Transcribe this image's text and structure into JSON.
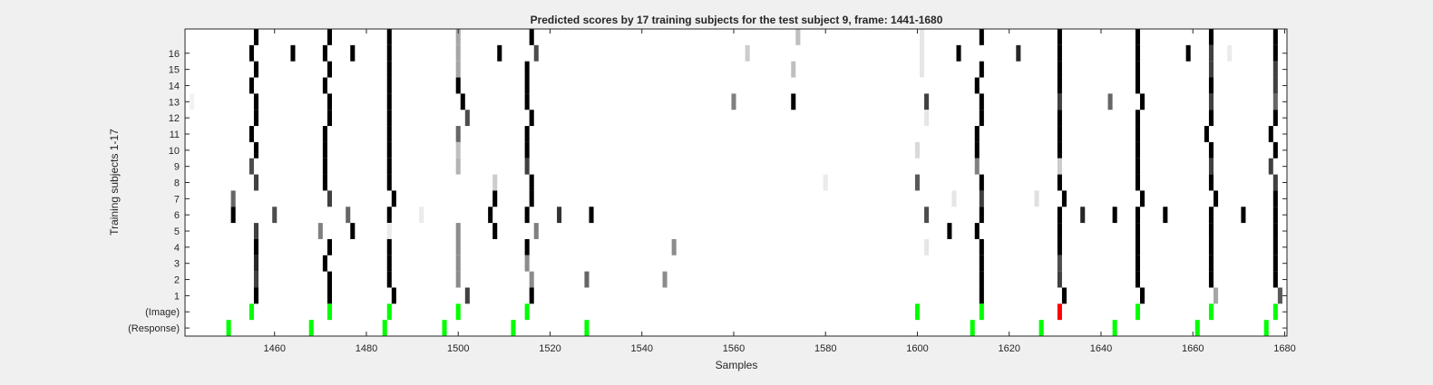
{
  "chart_data": {
    "type": "heatmap",
    "title": "Predicted scores by 17 training subjects for the test subject 9, frame: 1441-1680",
    "xlabel": "Samples",
    "ylabel": "Training subjects 1-17",
    "xlim": [
      1441,
      1680
    ],
    "x_ticks": [
      "1460",
      "1480",
      "1500",
      "1520",
      "1540",
      "1560",
      "1580",
      "1600",
      "1620",
      "1640",
      "1660",
      "1680"
    ],
    "y_tick_labels": [
      "16",
      "15",
      "14",
      "13",
      "12",
      "11",
      "10",
      "9",
      "8",
      "7",
      "6",
      "5",
      "4",
      "3",
      "2",
      "1",
      "(Image)",
      "(Response)"
    ],
    "rows": [
      "17",
      "16",
      "15",
      "14",
      "13",
      "12",
      "11",
      "10",
      "9",
      "8",
      "7",
      "6",
      "5",
      "4",
      "3",
      "2",
      "1",
      "(Image)",
      "(Response)"
    ],
    "value_range": [
      0,
      1
    ],
    "colors": {
      "score_max": "#000000",
      "score_min": "#ffffff",
      "marker": "#00ff00",
      "mismatch": "#ff0000",
      "background": "#f0f0f0"
    },
    "cells": [
      {
        "row": "17",
        "x": 1456,
        "v": 1.0
      },
      {
        "row": "17",
        "x": 1472,
        "v": 1.0
      },
      {
        "row": "17",
        "x": 1485,
        "v": 1.0
      },
      {
        "row": "17",
        "x": 1500,
        "v": 0.35
      },
      {
        "row": "17",
        "x": 1516,
        "v": 1.0
      },
      {
        "row": "17",
        "x": 1574,
        "v": 0.25
      },
      {
        "row": "17",
        "x": 1601,
        "v": 0.1
      },
      {
        "row": "17",
        "x": 1614,
        "v": 1.0
      },
      {
        "row": "17",
        "x": 1631,
        "v": 1.0
      },
      {
        "row": "17",
        "x": 1648,
        "v": 1.0
      },
      {
        "row": "17",
        "x": 1664,
        "v": 1.0
      },
      {
        "row": "17",
        "x": 1678,
        "v": 1.0
      },
      {
        "row": "16",
        "x": 1455,
        "v": 1.0
      },
      {
        "row": "16",
        "x": 1464,
        "v": 1.0
      },
      {
        "row": "16",
        "x": 1471,
        "v": 1.0
      },
      {
        "row": "16",
        "x": 1477,
        "v": 1.0
      },
      {
        "row": "16",
        "x": 1485,
        "v": 1.0
      },
      {
        "row": "16",
        "x": 1500,
        "v": 0.35
      },
      {
        "row": "16",
        "x": 1509,
        "v": 1.0
      },
      {
        "row": "16",
        "x": 1517,
        "v": 0.7
      },
      {
        "row": "16",
        "x": 1563,
        "v": 0.2
      },
      {
        "row": "16",
        "x": 1601,
        "v": 0.1
      },
      {
        "row": "16",
        "x": 1609,
        "v": 1.0
      },
      {
        "row": "16",
        "x": 1622,
        "v": 0.85
      },
      {
        "row": "16",
        "x": 1631,
        "v": 1.0
      },
      {
        "row": "16",
        "x": 1648,
        "v": 1.0
      },
      {
        "row": "16",
        "x": 1659,
        "v": 1.0
      },
      {
        "row": "16",
        "x": 1664,
        "v": 0.75
      },
      {
        "row": "16",
        "x": 1668,
        "v": 0.08
      },
      {
        "row": "16",
        "x": 1678,
        "v": 1.0
      },
      {
        "row": "15",
        "x": 1456,
        "v": 1.0
      },
      {
        "row": "15",
        "x": 1472,
        "v": 1.0
      },
      {
        "row": "15",
        "x": 1485,
        "v": 1.0
      },
      {
        "row": "15",
        "x": 1500,
        "v": 0.35
      },
      {
        "row": "15",
        "x": 1515,
        "v": 1.0
      },
      {
        "row": "15",
        "x": 1573,
        "v": 0.25
      },
      {
        "row": "15",
        "x": 1601,
        "v": 0.1
      },
      {
        "row": "15",
        "x": 1614,
        "v": 1.0
      },
      {
        "row": "15",
        "x": 1631,
        "v": 1.0
      },
      {
        "row": "15",
        "x": 1648,
        "v": 1.0
      },
      {
        "row": "15",
        "x": 1664,
        "v": 0.75
      },
      {
        "row": "15",
        "x": 1678,
        "v": 0.75
      },
      {
        "row": "14",
        "x": 1455,
        "v": 1.0
      },
      {
        "row": "14",
        "x": 1471,
        "v": 1.0
      },
      {
        "row": "14",
        "x": 1485,
        "v": 1.0
      },
      {
        "row": "14",
        "x": 1500,
        "v": 1.0
      },
      {
        "row": "14",
        "x": 1515,
        "v": 1.0
      },
      {
        "row": "14",
        "x": 1613,
        "v": 1.0
      },
      {
        "row": "14",
        "x": 1631,
        "v": 1.0
      },
      {
        "row": "14",
        "x": 1648,
        "v": 1.0
      },
      {
        "row": "14",
        "x": 1664,
        "v": 1.0
      },
      {
        "row": "14",
        "x": 1678,
        "v": 0.75
      },
      {
        "row": "13",
        "x": 1442,
        "v": 0.05
      },
      {
        "row": "13",
        "x": 1456,
        "v": 1.0
      },
      {
        "row": "13",
        "x": 1472,
        "v": 1.0
      },
      {
        "row": "13",
        "x": 1485,
        "v": 1.0
      },
      {
        "row": "13",
        "x": 1501,
        "v": 1.0
      },
      {
        "row": "13",
        "x": 1515,
        "v": 1.0
      },
      {
        "row": "13",
        "x": 1560,
        "v": 0.5
      },
      {
        "row": "13",
        "x": 1573,
        "v": 1.0
      },
      {
        "row": "13",
        "x": 1602,
        "v": 0.75
      },
      {
        "row": "13",
        "x": 1614,
        "v": 1.0
      },
      {
        "row": "13",
        "x": 1631,
        "v": 0.75
      },
      {
        "row": "13",
        "x": 1642,
        "v": 0.6
      },
      {
        "row": "13",
        "x": 1649,
        "v": 1.0
      },
      {
        "row": "13",
        "x": 1664,
        "v": 0.75
      },
      {
        "row": "13",
        "x": 1678,
        "v": 0.6
      },
      {
        "row": "12",
        "x": 1456,
        "v": 1.0
      },
      {
        "row": "12",
        "x": 1472,
        "v": 1.0
      },
      {
        "row": "12",
        "x": 1485,
        "v": 1.0
      },
      {
        "row": "12",
        "x": 1502,
        "v": 0.7
      },
      {
        "row": "12",
        "x": 1516,
        "v": 1.0
      },
      {
        "row": "12",
        "x": 1602,
        "v": 0.1
      },
      {
        "row": "12",
        "x": 1614,
        "v": 1.0
      },
      {
        "row": "12",
        "x": 1631,
        "v": 1.0
      },
      {
        "row": "12",
        "x": 1648,
        "v": 1.0
      },
      {
        "row": "12",
        "x": 1664,
        "v": 1.0
      },
      {
        "row": "12",
        "x": 1678,
        "v": 1.0
      },
      {
        "row": "11",
        "x": 1455,
        "v": 1.0
      },
      {
        "row": "11",
        "x": 1471,
        "v": 1.0
      },
      {
        "row": "11",
        "x": 1485,
        "v": 1.0
      },
      {
        "row": "11",
        "x": 1500,
        "v": 0.6
      },
      {
        "row": "11",
        "x": 1515,
        "v": 1.0
      },
      {
        "row": "11",
        "x": 1613,
        "v": 1.0
      },
      {
        "row": "11",
        "x": 1631,
        "v": 1.0
      },
      {
        "row": "11",
        "x": 1648,
        "v": 1.0
      },
      {
        "row": "11",
        "x": 1663,
        "v": 1.0
      },
      {
        "row": "11",
        "x": 1677,
        "v": 1.0
      },
      {
        "row": "10",
        "x": 1456,
        "v": 1.0
      },
      {
        "row": "10",
        "x": 1471,
        "v": 1.0
      },
      {
        "row": "10",
        "x": 1485,
        "v": 1.0
      },
      {
        "row": "10",
        "x": 1500,
        "v": 0.25
      },
      {
        "row": "10",
        "x": 1515,
        "v": 1.0
      },
      {
        "row": "10",
        "x": 1600,
        "v": 0.15
      },
      {
        "row": "10",
        "x": 1613,
        "v": 1.0
      },
      {
        "row": "10",
        "x": 1631,
        "v": 1.0
      },
      {
        "row": "10",
        "x": 1648,
        "v": 1.0
      },
      {
        "row": "10",
        "x": 1664,
        "v": 1.0
      },
      {
        "row": "10",
        "x": 1678,
        "v": 1.0
      },
      {
        "row": "9",
        "x": 1455,
        "v": 0.7
      },
      {
        "row": "9",
        "x": 1471,
        "v": 1.0
      },
      {
        "row": "9",
        "x": 1485,
        "v": 1.0
      },
      {
        "row": "9",
        "x": 1500,
        "v": 0.3
      },
      {
        "row": "9",
        "x": 1515,
        "v": 0.75
      },
      {
        "row": "9",
        "x": 1613,
        "v": 0.5
      },
      {
        "row": "9",
        "x": 1631,
        "v": 0.2
      },
      {
        "row": "9",
        "x": 1648,
        "v": 1.0
      },
      {
        "row": "9",
        "x": 1664,
        "v": 0.75
      },
      {
        "row": "9",
        "x": 1677,
        "v": 0.75
      },
      {
        "row": "8",
        "x": 1456,
        "v": 0.75
      },
      {
        "row": "8",
        "x": 1471,
        "v": 1.0
      },
      {
        "row": "8",
        "x": 1485,
        "v": 1.0
      },
      {
        "row": "8",
        "x": 1508,
        "v": 0.2
      },
      {
        "row": "8",
        "x": 1516,
        "v": 1.0
      },
      {
        "row": "8",
        "x": 1580,
        "v": 0.08
      },
      {
        "row": "8",
        "x": 1600,
        "v": 0.65
      },
      {
        "row": "8",
        "x": 1614,
        "v": 1.0
      },
      {
        "row": "8",
        "x": 1631,
        "v": 1.0
      },
      {
        "row": "8",
        "x": 1648,
        "v": 1.0
      },
      {
        "row": "8",
        "x": 1664,
        "v": 1.0
      },
      {
        "row": "8",
        "x": 1678,
        "v": 0.75
      },
      {
        "row": "7",
        "x": 1451,
        "v": 0.6
      },
      {
        "row": "7",
        "x": 1472,
        "v": 0.75
      },
      {
        "row": "7",
        "x": 1486,
        "v": 1.0
      },
      {
        "row": "7",
        "x": 1508,
        "v": 1.0
      },
      {
        "row": "7",
        "x": 1516,
        "v": 1.0
      },
      {
        "row": "7",
        "x": 1608,
        "v": 0.1
      },
      {
        "row": "7",
        "x": 1614,
        "v": 0.75
      },
      {
        "row": "7",
        "x": 1626,
        "v": 0.12
      },
      {
        "row": "7",
        "x": 1632,
        "v": 1.0
      },
      {
        "row": "7",
        "x": 1649,
        "v": 1.0
      },
      {
        "row": "7",
        "x": 1665,
        "v": 1.0
      },
      {
        "row": "7",
        "x": 1678,
        "v": 1.0
      },
      {
        "row": "6",
        "x": 1451,
        "v": 1.0
      },
      {
        "row": "6",
        "x": 1460,
        "v": 0.7
      },
      {
        "row": "6",
        "x": 1476,
        "v": 0.6
      },
      {
        "row": "6",
        "x": 1485,
        "v": 1.0
      },
      {
        "row": "6",
        "x": 1492,
        "v": 0.08
      },
      {
        "row": "6",
        "x": 1507,
        "v": 1.0
      },
      {
        "row": "6",
        "x": 1515,
        "v": 1.0
      },
      {
        "row": "6",
        "x": 1522,
        "v": 0.8
      },
      {
        "row": "6",
        "x": 1529,
        "v": 1.0
      },
      {
        "row": "6",
        "x": 1602,
        "v": 0.7
      },
      {
        "row": "6",
        "x": 1614,
        "v": 1.0
      },
      {
        "row": "6",
        "x": 1631,
        "v": 1.0
      },
      {
        "row": "6",
        "x": 1636,
        "v": 0.85
      },
      {
        "row": "6",
        "x": 1643,
        "v": 1.0
      },
      {
        "row": "6",
        "x": 1648,
        "v": 1.0
      },
      {
        "row": "6",
        "x": 1654,
        "v": 1.0
      },
      {
        "row": "6",
        "x": 1664,
        "v": 1.0
      },
      {
        "row": "6",
        "x": 1671,
        "v": 1.0
      },
      {
        "row": "6",
        "x": 1678,
        "v": 1.0
      },
      {
        "row": "5",
        "x": 1456,
        "v": 0.75
      },
      {
        "row": "5",
        "x": 1470,
        "v": 0.5
      },
      {
        "row": "5",
        "x": 1477,
        "v": 1.0
      },
      {
        "row": "5",
        "x": 1485,
        "v": 0.08
      },
      {
        "row": "5",
        "x": 1500,
        "v": 0.45
      },
      {
        "row": "5",
        "x": 1508,
        "v": 1.0
      },
      {
        "row": "5",
        "x": 1517,
        "v": 0.5
      },
      {
        "row": "5",
        "x": 1607,
        "v": 1.0
      },
      {
        "row": "5",
        "x": 1613,
        "v": 1.0
      },
      {
        "row": "5",
        "x": 1631,
        "v": 1.0
      },
      {
        "row": "5",
        "x": 1648,
        "v": 1.0
      },
      {
        "row": "5",
        "x": 1664,
        "v": 1.0
      },
      {
        "row": "5",
        "x": 1678,
        "v": 1.0
      },
      {
        "row": "4",
        "x": 1456,
        "v": 1.0
      },
      {
        "row": "4",
        "x": 1472,
        "v": 1.0
      },
      {
        "row": "4",
        "x": 1485,
        "v": 1.0
      },
      {
        "row": "4",
        "x": 1500,
        "v": 0.45
      },
      {
        "row": "4",
        "x": 1515,
        "v": 1.0
      },
      {
        "row": "4",
        "x": 1547,
        "v": 0.45
      },
      {
        "row": "4",
        "x": 1602,
        "v": 0.1
      },
      {
        "row": "4",
        "x": 1614,
        "v": 1.0
      },
      {
        "row": "4",
        "x": 1631,
        "v": 1.0
      },
      {
        "row": "4",
        "x": 1648,
        "v": 1.0
      },
      {
        "row": "4",
        "x": 1664,
        "v": 1.0
      },
      {
        "row": "4",
        "x": 1678,
        "v": 1.0
      },
      {
        "row": "3",
        "x": 1456,
        "v": 0.85
      },
      {
        "row": "3",
        "x": 1471,
        "v": 1.0
      },
      {
        "row": "3",
        "x": 1485,
        "v": 1.0
      },
      {
        "row": "3",
        "x": 1500,
        "v": 0.45
      },
      {
        "row": "3",
        "x": 1515,
        "v": 0.45
      },
      {
        "row": "3",
        "x": 1614,
        "v": 1.0
      },
      {
        "row": "3",
        "x": 1631,
        "v": 0.7
      },
      {
        "row": "3",
        "x": 1648,
        "v": 1.0
      },
      {
        "row": "3",
        "x": 1664,
        "v": 1.0
      },
      {
        "row": "3",
        "x": 1678,
        "v": 1.0
      },
      {
        "row": "2",
        "x": 1456,
        "v": 0.75
      },
      {
        "row": "2",
        "x": 1472,
        "v": 1.0
      },
      {
        "row": "2",
        "x": 1485,
        "v": 1.0
      },
      {
        "row": "2",
        "x": 1500,
        "v": 0.45
      },
      {
        "row": "2",
        "x": 1516,
        "v": 0.45
      },
      {
        "row": "2",
        "x": 1528,
        "v": 0.6
      },
      {
        "row": "2",
        "x": 1545,
        "v": 0.45
      },
      {
        "row": "2",
        "x": 1614,
        "v": 1.0
      },
      {
        "row": "2",
        "x": 1631,
        "v": 0.75
      },
      {
        "row": "2",
        "x": 1648,
        "v": 1.0
      },
      {
        "row": "2",
        "x": 1664,
        "v": 1.0
      },
      {
        "row": "2",
        "x": 1678,
        "v": 1.0
      },
      {
        "row": "1",
        "x": 1456,
        "v": 1.0
      },
      {
        "row": "1",
        "x": 1472,
        "v": 1.0
      },
      {
        "row": "1",
        "x": 1486,
        "v": 1.0
      },
      {
        "row": "1",
        "x": 1502,
        "v": 0.75
      },
      {
        "row": "1",
        "x": 1516,
        "v": 1.0
      },
      {
        "row": "1",
        "x": 1614,
        "v": 1.0
      },
      {
        "row": "1",
        "x": 1632,
        "v": 1.0
      },
      {
        "row": "1",
        "x": 1649,
        "v": 1.0
      },
      {
        "row": "1",
        "x": 1665,
        "v": 0.35
      },
      {
        "row": "1",
        "x": 1679,
        "v": 0.65
      }
    ],
    "image_markers": [
      {
        "x": 1455,
        "color": "#00ff00"
      },
      {
        "x": 1472,
        "color": "#00ff00"
      },
      {
        "x": 1485,
        "color": "#00ff00"
      },
      {
        "x": 1500,
        "color": "#00ff00"
      },
      {
        "x": 1515,
        "color": "#00ff00"
      },
      {
        "x": 1600,
        "color": "#00ff00"
      },
      {
        "x": 1614,
        "color": "#00ff00"
      },
      {
        "x": 1631,
        "color": "#ff0000"
      },
      {
        "x": 1648,
        "color": "#00ff00"
      },
      {
        "x": 1664,
        "color": "#00ff00"
      },
      {
        "x": 1678,
        "color": "#00ff00"
      }
    ],
    "response_markers": [
      {
        "x": 1450,
        "color": "#00ff00"
      },
      {
        "x": 1468,
        "color": "#00ff00"
      },
      {
        "x": 1484,
        "color": "#00ff00"
      },
      {
        "x": 1497,
        "color": "#00ff00"
      },
      {
        "x": 1512,
        "color": "#00ff00"
      },
      {
        "x": 1528,
        "color": "#00ff00"
      },
      {
        "x": 1612,
        "color": "#00ff00"
      },
      {
        "x": 1627,
        "color": "#00ff00"
      },
      {
        "x": 1643,
        "color": "#00ff00"
      },
      {
        "x": 1661,
        "color": "#00ff00"
      },
      {
        "x": 1676,
        "color": "#00ff00"
      }
    ]
  }
}
